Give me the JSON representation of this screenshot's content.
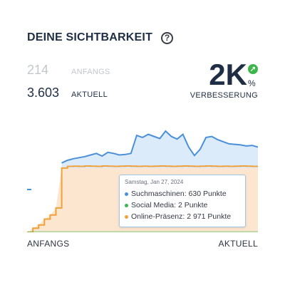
{
  "header": {
    "title": "DEINE SICHTBARKEIT",
    "help": "?"
  },
  "stats": {
    "start": {
      "value": "214",
      "label": "ANFANGS"
    },
    "current": {
      "value": "3.603",
      "label": "AKTUELL"
    }
  },
  "improvement": {
    "value": "2K",
    "unit": "%",
    "label": "VERBESSERUNG",
    "arrow": "↗"
  },
  "tooltip": {
    "date": "Samstag, Jan 27, 2024",
    "rows": [
      {
        "text": "Suchmaschinen: 630 Punkte",
        "color": "#4a90d9"
      },
      {
        "text": "Social Media: 2 Punkte",
        "color": "#3cb54a"
      },
      {
        "text": "Online-Präsenz: 2 971 Punkte",
        "color": "#f0a13a"
      }
    ]
  },
  "axis": {
    "left": "ANFANGS",
    "right": "AKTUELL"
  },
  "colors": {
    "blue": "#4a90d9",
    "blue_fill": "#dcebfa",
    "orange": "#f0a13a",
    "orange_fill": "#fde6cf",
    "green": "#3cb54a"
  },
  "chart_data": {
    "type": "area",
    "series": [
      {
        "values": [
          0,
          0,
          0,
          0,
          0,
          0,
          50,
          55,
          58,
          60,
          62,
          65,
          68,
          63,
          70,
          68,
          65,
          66,
          68,
          102,
          98,
          104,
          100,
          96,
          110,
          100,
          95,
          104,
          80,
          64,
          76,
          98,
          100,
          94,
          90,
          86,
          85,
          84,
          82,
          83,
          80
        ]
      },
      {
        "values": [
          0,
          2,
          2,
          2,
          2,
          2,
          2,
          2,
          2,
          2,
          2,
          2,
          2,
          2,
          2,
          2,
          2,
          2,
          2,
          2,
          2,
          2,
          2,
          2,
          2,
          2,
          2,
          2,
          2,
          2,
          2,
          2,
          2,
          2,
          2,
          2,
          2,
          2,
          2,
          2,
          2
        ]
      },
      {
        "values": [
          0,
          120,
          210,
          380,
          500,
          700,
          1850,
          1900,
          1905,
          1900,
          1910,
          1905,
          1900,
          1910,
          1905,
          1900,
          1905,
          1910,
          1905,
          1900,
          1905,
          1900,
          1905,
          1910,
          1905,
          1900,
          1905,
          1910,
          1905,
          1900,
          1905,
          1910,
          1905,
          1900,
          1905,
          1900,
          1905,
          1910,
          1905,
          1900,
          1905
        ]
      }
    ]
  }
}
